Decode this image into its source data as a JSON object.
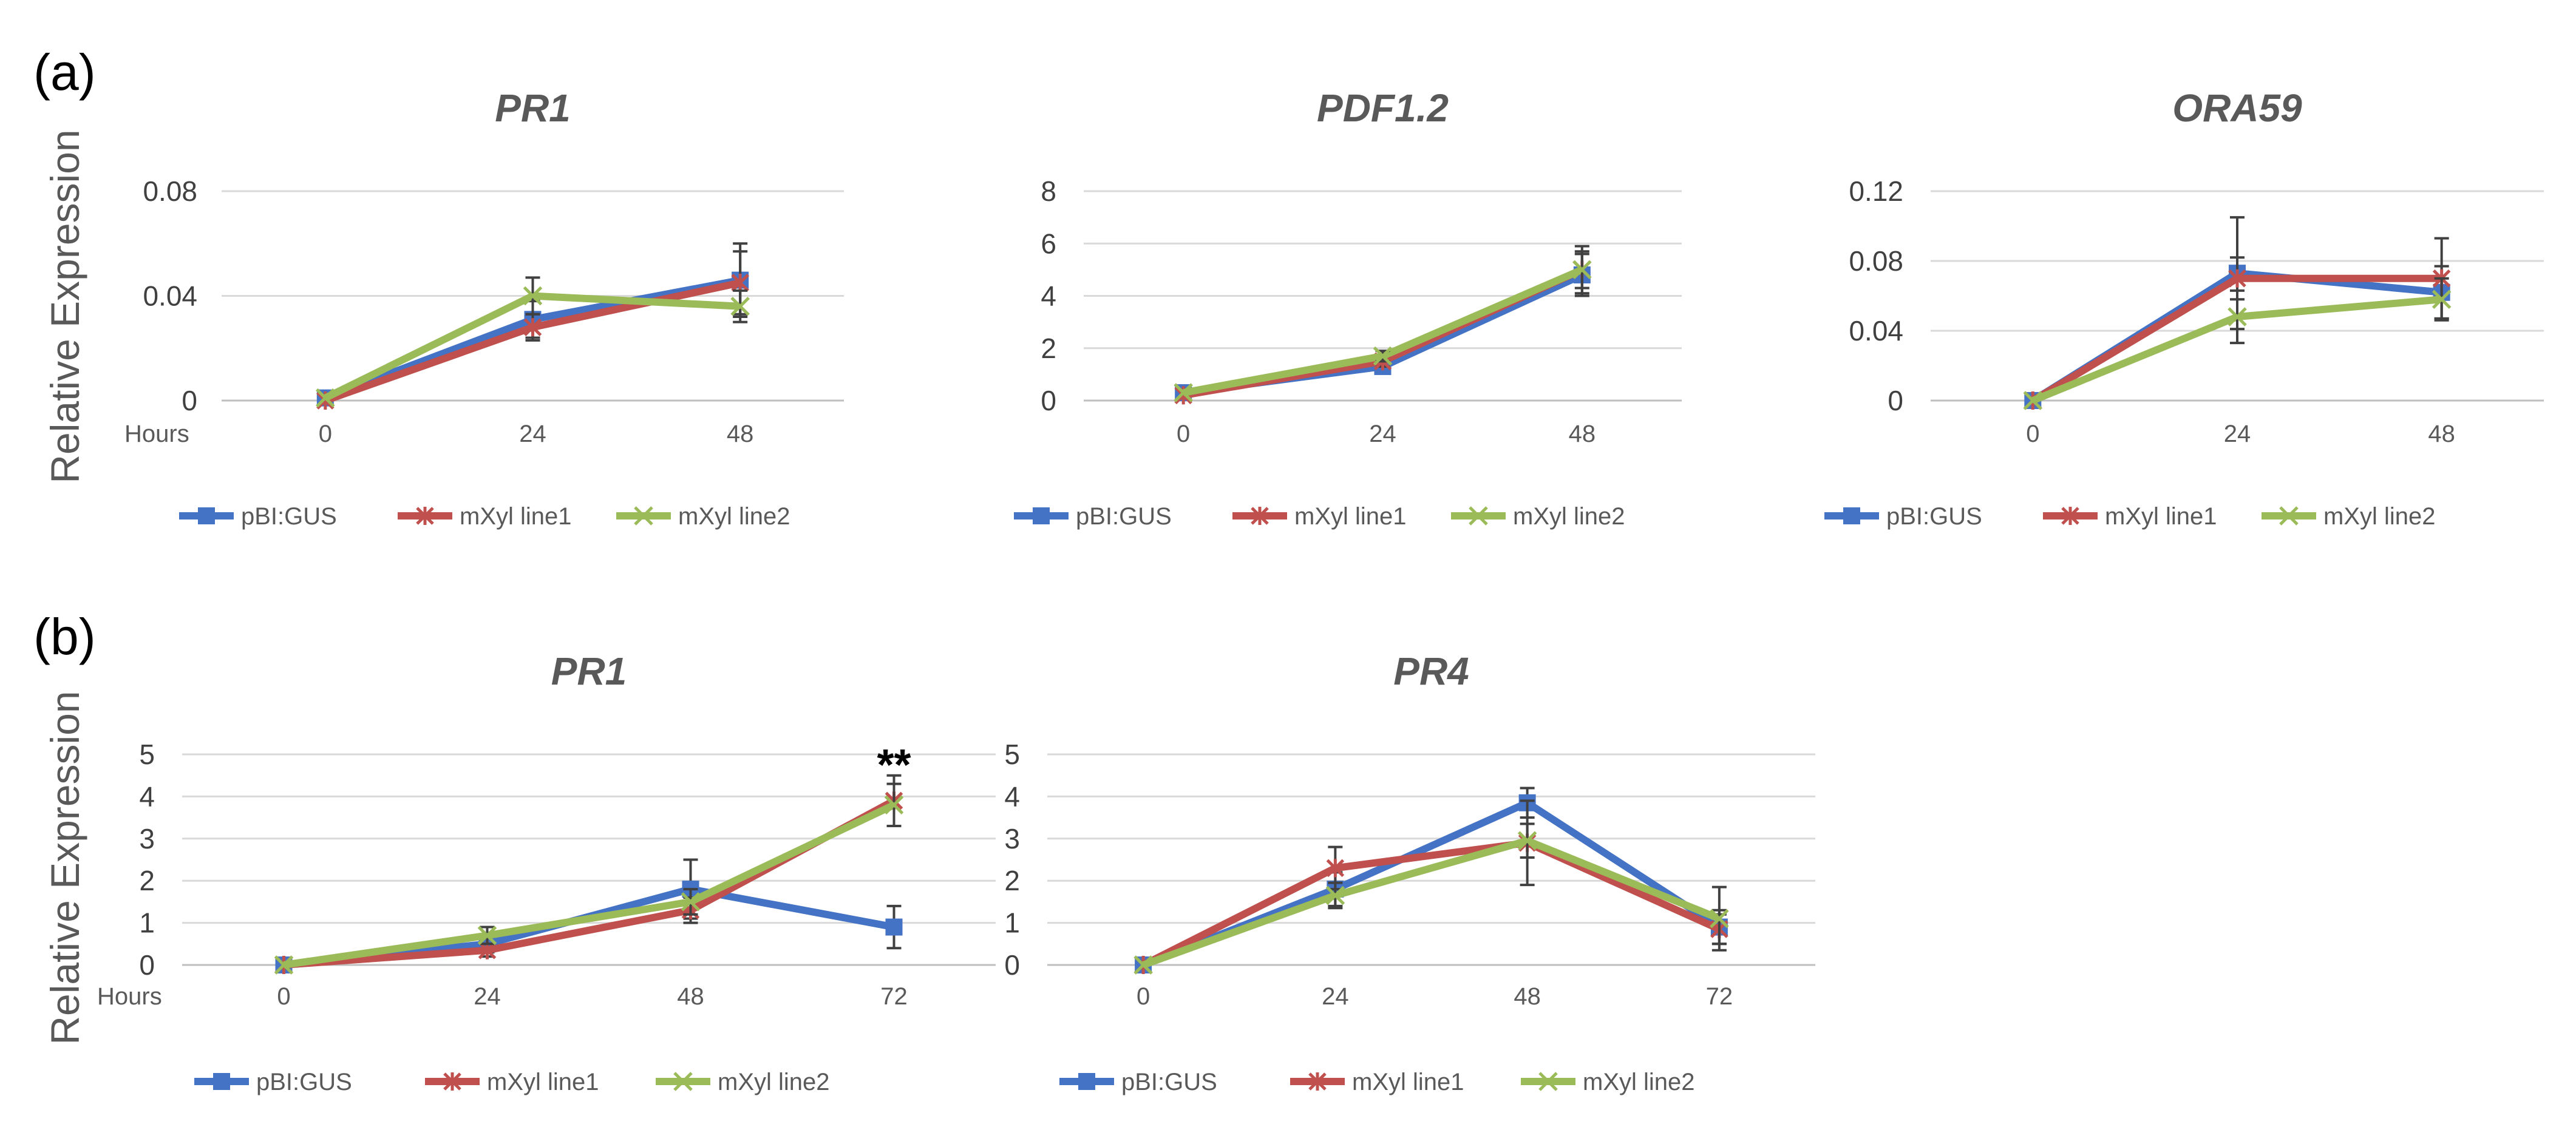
{
  "figure": {
    "panels": [
      {
        "label": "(a)",
        "ylabel": "Relative Expression"
      },
      {
        "label": "(b)",
        "ylabel": "Relative Expression"
      }
    ]
  },
  "colors": {
    "pBI:GUS": "#4472C4",
    "mXyl line1": "#C0504D",
    "mXyl line2": "#9BBB59"
  },
  "chart_data": [
    {
      "type": "line",
      "panel": "(a)",
      "title": "PR1",
      "xlabel": "Hours",
      "categories": [
        "0",
        "24",
        "48"
      ],
      "ylim": [
        0,
        0.08
      ],
      "yticks": [
        "0",
        "0.04",
        "0.08"
      ],
      "series": [
        {
          "name": "pBI:GUS",
          "values": [
            0.001,
            0.031,
            0.046
          ],
          "err": [
            0.0,
            0.007,
            0.014
          ],
          "marker": "square"
        },
        {
          "name": "mXyl line1",
          "values": [
            0.0,
            0.028,
            0.045
          ],
          "err": [
            0.0,
            0.005,
            0.012
          ],
          "marker": "star"
        },
        {
          "name": "mXyl line2",
          "values": [
            0.001,
            0.04,
            0.036
          ],
          "err": [
            0.0,
            0.007,
            0.006
          ],
          "marker": "x"
        }
      ],
      "legend": "bottom"
    },
    {
      "type": "line",
      "panel": "(a)",
      "title": "PDF1.2",
      "xlabel": "",
      "categories": [
        "0",
        "24",
        "48"
      ],
      "ylim": [
        0,
        8
      ],
      "yticks": [
        "0",
        "2",
        "4",
        "6",
        "8"
      ],
      "series": [
        {
          "name": "pBI:GUS",
          "values": [
            0.3,
            1.3,
            4.8
          ],
          "err": [
            0.0,
            0.2,
            0.8
          ],
          "marker": "square"
        },
        {
          "name": "mXyl line1",
          "values": [
            0.2,
            1.5,
            5.0
          ],
          "err": [
            0.0,
            0.2,
            0.9
          ],
          "marker": "star"
        },
        {
          "name": "mXyl line2",
          "values": [
            0.3,
            1.7,
            5.0
          ],
          "err": [
            0.0,
            0.2,
            0.7
          ],
          "marker": "x"
        }
      ],
      "legend": "bottom"
    },
    {
      "type": "line",
      "panel": "(a)",
      "title": "ORA59",
      "xlabel": "",
      "categories": [
        "0",
        "24",
        "48"
      ],
      "ylim": [
        0,
        0.12
      ],
      "yticks": [
        "0",
        "0.04",
        "0.08",
        "0.12"
      ],
      "series": [
        {
          "name": "pBI:GUS",
          "values": [
            0.0,
            0.073,
            0.062
          ],
          "err": [
            0.0,
            0.032,
            0.015
          ],
          "marker": "square"
        },
        {
          "name": "mXyl line1",
          "values": [
            0.0,
            0.07,
            0.07
          ],
          "err": [
            0.0,
            0.012,
            0.023
          ],
          "marker": "star"
        },
        {
          "name": "mXyl line2",
          "values": [
            0.0,
            0.048,
            0.058
          ],
          "err": [
            0.0,
            0.015,
            0.012
          ],
          "marker": "x"
        }
      ],
      "legend": "bottom"
    },
    {
      "type": "line",
      "panel": "(b)",
      "title": "PR1",
      "xlabel": "Hours",
      "categories": [
        "0",
        "24",
        "48",
        "72"
      ],
      "ylim": [
        0,
        5
      ],
      "yticks": [
        "0",
        "1",
        "2",
        "3",
        "4",
        "5"
      ],
      "series": [
        {
          "name": "pBI:GUS",
          "values": [
            0.0,
            0.5,
            1.8,
            0.9
          ],
          "err": [
            0.0,
            0.2,
            0.7,
            0.5
          ],
          "marker": "square"
        },
        {
          "name": "mXyl line1",
          "values": [
            0.0,
            0.35,
            1.3,
            3.9
          ],
          "err": [
            0.0,
            0.15,
            0.3,
            0.6
          ],
          "marker": "star"
        },
        {
          "name": "mXyl line2",
          "values": [
            0.0,
            0.7,
            1.5,
            3.8
          ],
          "err": [
            0.0,
            0.2,
            0.3,
            0.5
          ],
          "marker": "x"
        }
      ],
      "annotation": {
        "text": "**",
        "category": "72",
        "y": 4.8
      },
      "legend": "bottom"
    },
    {
      "type": "line",
      "panel": "(b)",
      "title": "PR4",
      "xlabel": "",
      "categories": [
        "0",
        "24",
        "48",
        "72"
      ],
      "ylim": [
        0,
        5
      ],
      "yticks": [
        "0",
        "1",
        "2",
        "3",
        "4",
        "5"
      ],
      "series": [
        {
          "name": "pBI:GUS",
          "values": [
            0.0,
            1.8,
            3.85,
            0.9
          ],
          "err": [
            0.0,
            0.4,
            0.35,
            0.4
          ],
          "marker": "square"
        },
        {
          "name": "mXyl line1",
          "values": [
            0.0,
            2.3,
            2.9,
            0.85
          ],
          "err": [
            0.0,
            0.5,
            1.0,
            0.35
          ],
          "marker": "star"
        },
        {
          "name": "mXyl line2",
          "values": [
            0.0,
            1.65,
            2.95,
            1.1
          ],
          "err": [
            0.0,
            0.3,
            0.4,
            0.75
          ],
          "marker": "x"
        }
      ],
      "legend": "bottom"
    }
  ]
}
